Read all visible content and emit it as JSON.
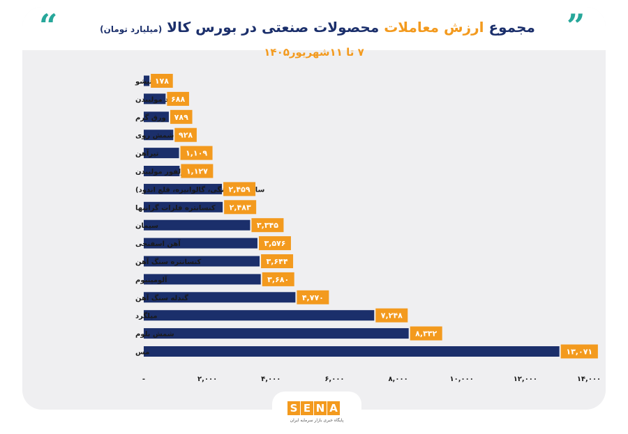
{
  "header": {
    "title_main": "مجموع",
    "title_highlight": "ارزش معاملات",
    "title_rest": "محصولات صنعتی در بورس کالا",
    "title_unit": "(میلیارد تومان)",
    "subtitle": "۷ تا ۱۱شهریور۱۴۰۵",
    "quote_left": "“",
    "quote_right": "”"
  },
  "logo": {
    "letters": [
      "S",
      "E",
      "N",
      "A"
    ],
    "tagline": "پایگاه خبری بازار سرمایه ایران"
  },
  "colors": {
    "bar": "#1b2f6b",
    "value_box": "#f39a1e",
    "accent": "#27a79a"
  },
  "chart_data": {
    "type": "bar",
    "orientation": "horizontal",
    "categories": [
      "تیشو",
      "اکسید مولیبدن",
      "ورق گرم",
      "شمش روی",
      "تیرآهن",
      "سولفور مولیبدن",
      "سایر ورق(رنگی، گالوانیزه، قلع اندود)",
      "کنسانتره فلزات گرانبها",
      "سیمان",
      "آهن اسفنجی",
      "کنسانتره سنگ آهن",
      "آلومینیوم",
      "گندله سنگ آهن",
      "میلگرد",
      "شمش بلوم",
      "مس"
    ],
    "values": [
      178,
      688,
      789,
      928,
      1109,
      1127,
      2459,
      2483,
      3345,
      3576,
      3644,
      3680,
      4770,
      7248,
      8332,
      13071
    ],
    "value_labels": [
      "۱۷۸",
      "۶۸۸",
      "۷۸۹",
      "۹۲۸",
      "۱,۱۰۹",
      "۱,۱۲۷",
      "۲,۴۵۹",
      "۲,۴۸۳",
      "۳,۳۴۵",
      "۳,۵۷۶",
      "۳,۶۴۴",
      "۳,۶۸۰",
      "۴,۷۷۰",
      "۷,۲۴۸",
      "۸,۳۳۲",
      "۱۳,۰۷۱"
    ],
    "xlim": [
      0,
      14000
    ],
    "x_ticks": [
      0,
      2000,
      4000,
      6000,
      8000,
      10000,
      12000,
      14000
    ],
    "x_tick_labels": [
      "-",
      "۲,۰۰۰",
      "۴,۰۰۰",
      "۶,۰۰۰",
      "۸,۰۰۰",
      "۱۰,۰۰۰",
      "۱۲,۰۰۰",
      "۱۴,۰۰۰"
    ],
    "grid": false,
    "legend": "none"
  }
}
